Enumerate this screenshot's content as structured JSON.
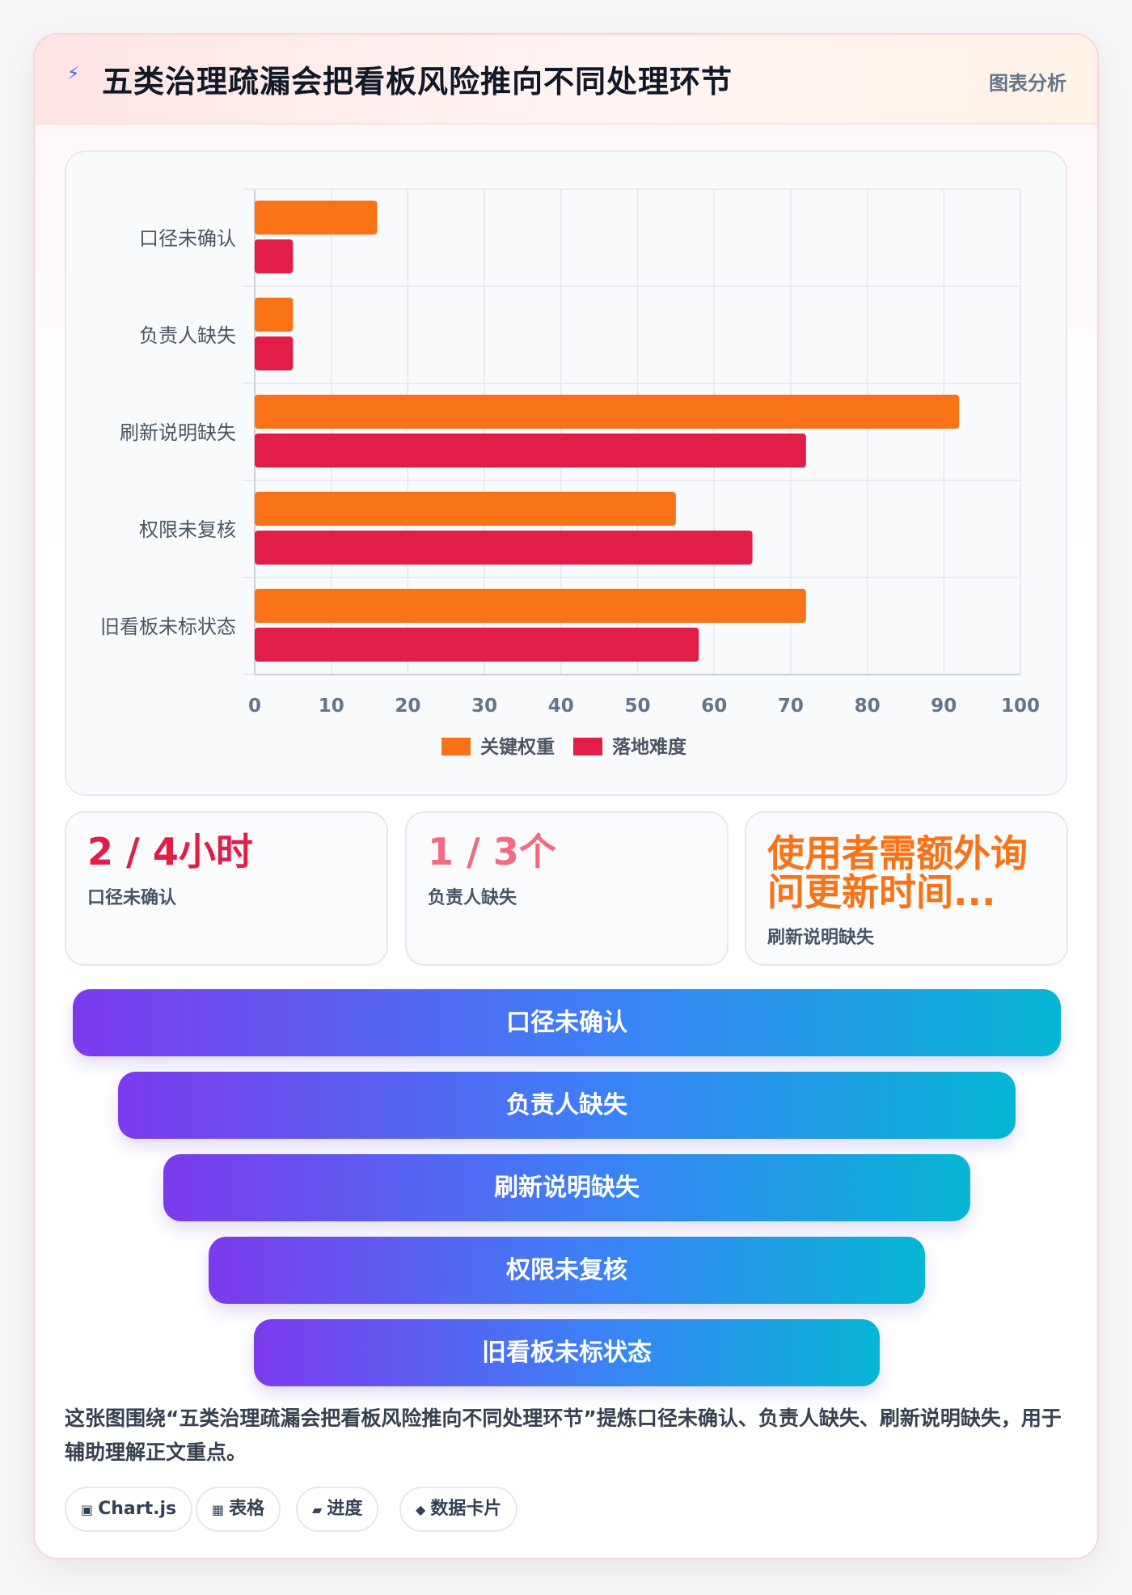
{
  "header": {
    "title": "五类治理疏漏会把看板风险推向不同处理环节",
    "tag": "图表分析",
    "icon": "bolt-icon"
  },
  "chart_data": {
    "type": "bar",
    "orientation": "horizontal",
    "categories": [
      "口径未确认",
      "负责人缺失",
      "刷新说明缺失",
      "权限未复核",
      "旧看板未标状态"
    ],
    "series": [
      {
        "name": "关键权重",
        "values": [
          16,
          5,
          92,
          55,
          72
        ],
        "color": "#f97316"
      },
      {
        "name": "落地难度",
        "values": [
          5,
          5,
          72,
          65,
          58
        ],
        "color": "#e11d48"
      }
    ],
    "xlim": [
      0,
      100
    ],
    "xticks": [
      0,
      10,
      20,
      30,
      40,
      50,
      60,
      70,
      80,
      90,
      100
    ],
    "grid": true,
    "legend": "bottom"
  },
  "stats": [
    {
      "value": "2 / 4小时",
      "label": "口径未确认"
    },
    {
      "value": "1 / 3个",
      "label": "负责人缺失"
    },
    {
      "value": "使用者需额外询问更新时间...",
      "label": "刷新说明缺失"
    }
  ],
  "funnel": [
    "口径未确认",
    "负责人缺失",
    "刷新说明缺失",
    "权限未复核",
    "旧看板未标状态"
  ],
  "description": "这张图围绕“五类治理疏漏会把看板风险推向不同处理环节”提炼口径未确认、负责人缺失、刷新说明缺失，用于辅助理解正文重点。",
  "chips": [
    {
      "icon": "▣",
      "label": "Chart.js"
    },
    {
      "icon": "▦",
      "label": "表格"
    },
    {
      "icon": "▰",
      "label": "进度"
    },
    {
      "icon": "◆",
      "label": "数据卡片"
    }
  ]
}
